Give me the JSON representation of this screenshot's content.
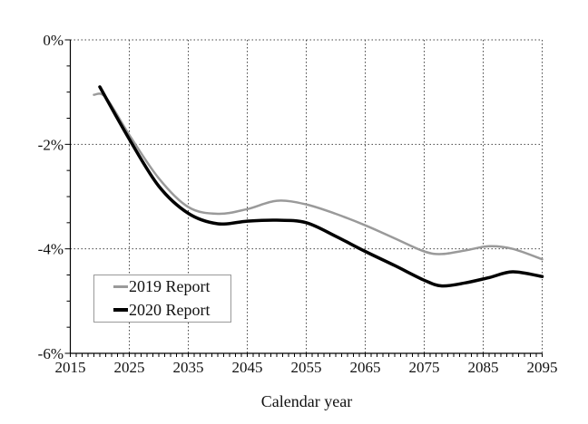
{
  "page": {
    "background": "#ffffff",
    "text_color": "#111111"
  },
  "chart_data": {
    "type": "line",
    "title": "",
    "xlabel": "Calendar year",
    "ylabel": "",
    "xlim": [
      2015,
      2095
    ],
    "ylim": [
      -6,
      0
    ],
    "xticks": [
      2015,
      2025,
      2035,
      2045,
      2055,
      2065,
      2075,
      2085,
      2095
    ],
    "xtick_labels": [
      "2015",
      "2025",
      "2035",
      "2045",
      "2055",
      "2065",
      "2075",
      "2085",
      "2095"
    ],
    "ytick_values": [
      0,
      -2,
      -4,
      -6
    ],
    "ytick_labels": [
      "0%",
      "-2%",
      "-4%",
      "-6%"
    ],
    "x_minor_tick_step_years": 1,
    "y_minor_tick_step_pct": 0.5,
    "grid": "dotted major gridlines (horizontal at 0,-2,-4; vertical every 10 years 2025-2095)",
    "gridline_color": "#444444",
    "axis_color": "#000000",
    "legend_position": "lower-left-inside",
    "legend_border_color": "#999999",
    "series": [
      {
        "name": "2019 Report",
        "color": "#9a9a9a",
        "stroke_width": 2.5,
        "x": [
          2019,
          2021,
          2025,
          2030,
          2035,
          2040,
          2045,
          2050,
          2055,
          2060,
          2065,
          2070,
          2075,
          2078,
          2082,
          2086,
          2090,
          2095
        ],
        "y": [
          -1.05,
          -1.1,
          -1.82,
          -2.65,
          -3.2,
          -3.33,
          -3.24,
          -3.08,
          -3.15,
          -3.33,
          -3.55,
          -3.8,
          -4.05,
          -4.1,
          -4.03,
          -3.95,
          -4.0,
          -4.2
        ]
      },
      {
        "name": "2020 Report",
        "color": "#000000",
        "stroke_width": 3.5,
        "x": [
          2020,
          2025,
          2030,
          2035,
          2040,
          2045,
          2050,
          2055,
          2060,
          2065,
          2070,
          2075,
          2078,
          2082,
          2086,
          2090,
          2095
        ],
        "y": [
          -0.9,
          -1.9,
          -2.8,
          -3.32,
          -3.52,
          -3.47,
          -3.45,
          -3.5,
          -3.76,
          -4.05,
          -4.32,
          -4.6,
          -4.71,
          -4.65,
          -4.55,
          -4.44,
          -4.53
        ]
      }
    ]
  },
  "legend": {
    "entries": [
      "2019 Report",
      "2020 Report"
    ]
  }
}
